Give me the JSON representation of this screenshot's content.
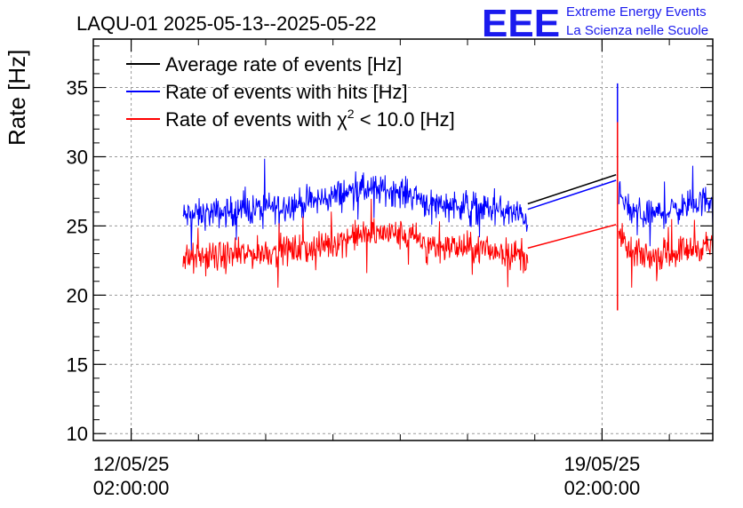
{
  "chart_data": {
    "type": "line",
    "title": "LAQU-01 2025-05-13--2025-05-22",
    "ylabel": "Rate [Hz]",
    "xlabel": "",
    "ylim": [
      9.5,
      38.5
    ],
    "yticks": [
      10,
      15,
      20,
      25,
      30,
      35
    ],
    "xrange_days": [
      "2025-05-11T12:30",
      "2025-05-20T17:30"
    ],
    "xticks": [
      {
        "date": "12/05/25",
        "time": "02:00:00",
        "x": "2025-05-12T02:00"
      },
      {
        "date": "19/05/25",
        "time": "02:00:00",
        "x": "2025-05-19T02:00"
      }
    ],
    "grid": true,
    "legend_position": "top-left",
    "series": [
      {
        "name": "Average rate of events [Hz]",
        "color": "#000000",
        "segments": [
          {
            "x_start": "2025-05-12T20:30",
            "x_end": "2025-05-13T05:00",
            "y_base": [
              25.8,
              26.1
            ],
            "noise": 1.4
          },
          {
            "x_start": "2025-05-15T19:00",
            "x_end": "2025-05-16T08:00",
            "y_base": [
              27.5,
              27.9
            ],
            "noise": 1.2
          },
          {
            "x_start": "2025-05-17T19:30",
            "x_end": "2025-05-18T00:00",
            "y_base": [
              26.6,
              26.8
            ],
            "noise": 1.2
          },
          {
            "x_start": "2025-05-19T08:00",
            "x_end": "2025-05-20T10:00",
            "y_base": [
              26.2,
              27.2
            ],
            "noise": 1.3
          }
        ],
        "gap_line": [
          [
            "2025-05-17T23:30",
            26.6
          ],
          [
            "2025-05-19T07:00",
            28.7
          ]
        ]
      },
      {
        "name": "Rate of events with hits [Hz]",
        "color": "#0000ff",
        "profile": [
          [
            "2025-05-12T20:30",
            25.7
          ],
          [
            "2025-05-13T12:00",
            26.0
          ],
          [
            "2025-05-14T06:00",
            26.4
          ],
          [
            "2025-05-14T20:00",
            26.8
          ],
          [
            "2025-05-15T10:00",
            27.6
          ],
          [
            "2025-05-15T22:00",
            27.6
          ],
          [
            "2025-05-16T08:00",
            27.2
          ],
          [
            "2025-05-16T12:00",
            26.6
          ],
          [
            "2025-05-17T02:00",
            26.5
          ],
          [
            "2025-05-17T16:00",
            26.0
          ],
          [
            "2025-05-17T23:30",
            25.6
          ]
        ],
        "profile2": [
          [
            "2025-05-19T08:00",
            27.2
          ],
          [
            "2025-05-19T12:00",
            26.0
          ],
          [
            "2025-05-19T20:00",
            25.8
          ],
          [
            "2025-05-20T06:00",
            26.3
          ],
          [
            "2025-05-20T17:30",
            27.0
          ]
        ],
        "noise": 1.6,
        "gap_line": [
          [
            "2025-05-17T23:30",
            26.2
          ],
          [
            "2025-05-19T07:00",
            28.3
          ]
        ],
        "spike": {
          "x": "2025-05-19T07:30",
          "y_top": 35.3,
          "y_bottom": 26.5
        }
      },
      {
        "name": "Rate of events with χ² < 10.0 [Hz]",
        "color": "#ff0000",
        "profile": [
          [
            "2025-05-12T20:30",
            22.6
          ],
          [
            "2025-05-13T12:00",
            22.8
          ],
          [
            "2025-05-14T06:00",
            23.2
          ],
          [
            "2025-05-14T20:00",
            23.4
          ],
          [
            "2025-05-15T10:00",
            24.3
          ],
          [
            "2025-05-15T22:00",
            24.5
          ],
          [
            "2025-05-16T08:00",
            24.1
          ],
          [
            "2025-05-16T12:00",
            23.6
          ],
          [
            "2025-05-17T02:00",
            23.4
          ],
          [
            "2025-05-17T16:00",
            23.1
          ],
          [
            "2025-05-17T23:30",
            22.8
          ]
        ],
        "profile2": [
          [
            "2025-05-19T08:00",
            24.3
          ],
          [
            "2025-05-19T12:00",
            23.0
          ],
          [
            "2025-05-19T20:00",
            22.8
          ],
          [
            "2025-05-20T06:00",
            23.2
          ],
          [
            "2025-05-20T17:30",
            23.7
          ]
        ],
        "noise": 1.6,
        "gap_line": [
          [
            "2025-05-17T23:30",
            23.4
          ],
          [
            "2025-05-19T07:00",
            25.1
          ]
        ],
        "spike": {
          "x": "2025-05-19T07:30",
          "y_top": 32.5,
          "y_bottom": 18.9
        }
      }
    ]
  },
  "legend": {
    "items": [
      {
        "label": "Average rate of events [Hz]",
        "color": "#000000"
      },
      {
        "label": "Rate of events with hits [Hz]",
        "color": "#0000ff"
      },
      {
        "label_prefix": "Rate of events with ",
        "label_chi": "χ",
        "label_sup": "2",
        "label_suffix": " < 10.0 [Hz]",
        "color": "#ff0000"
      }
    ]
  },
  "logo": {
    "mark": "EEE",
    "line1": "Extreme Energy Events",
    "line2": "La Scienza nelle Scuole",
    "color": "#1a1aee"
  }
}
